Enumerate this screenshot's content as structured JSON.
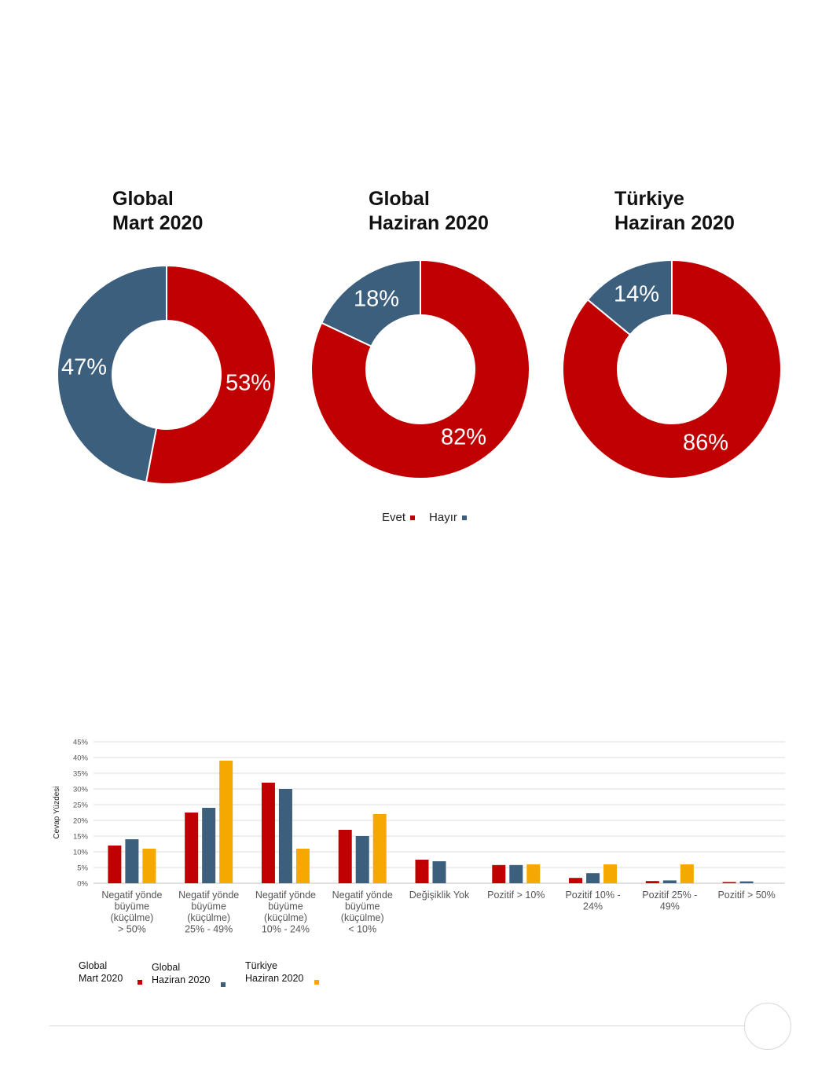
{
  "colors": {
    "evet": "#c00000",
    "hayir": "#3d5f7e",
    "global_mart": "#c00000",
    "global_haziran": "#3d5f7e",
    "turkiye_haziran": "#f5a800"
  },
  "donut_titles": [
    {
      "line1": "Global",
      "line2": "Mart 2020"
    },
    {
      "line1": "Global",
      "line2": "Haziran 2020"
    },
    {
      "line1": "Türkiye",
      "line2": "Haziran 2020"
    }
  ],
  "donut_legend": {
    "evet": "Evet",
    "hayir": "Hayır"
  },
  "bar_legend": [
    {
      "line1": "Global",
      "line2": "Mart 2020"
    },
    {
      "line1": "Global",
      "line2": "Haziran 2020"
    },
    {
      "line1": "Türkiye",
      "line2": "Haziran 2020"
    }
  ],
  "chart_data": [
    {
      "type": "pie",
      "title": "Global Mart 2020",
      "labels": [
        "Evet",
        "Hayır"
      ],
      "values": [
        53,
        47
      ],
      "value_labels": [
        "53%",
        "47%"
      ]
    },
    {
      "type": "pie",
      "title": "Global Haziran 2020",
      "labels": [
        "Evet",
        "Hayır"
      ],
      "values": [
        82,
        18
      ],
      "value_labels": [
        "82%",
        "18%"
      ]
    },
    {
      "type": "pie",
      "title": "Türkiye Haziran 2020",
      "labels": [
        "Evet",
        "Hayır"
      ],
      "values": [
        86,
        14
      ],
      "value_labels": [
        "86%",
        "14%"
      ]
    },
    {
      "type": "bar",
      "ylabel": "Cevap Yüzdesi",
      "ylim": [
        0,
        45
      ],
      "yticks": [
        "0%",
        "5%",
        "10%",
        "15%",
        "20%",
        "25%",
        "30%",
        "35%",
        "40%",
        "45%"
      ],
      "grid": true,
      "legend": "bottom-left",
      "categories": [
        [
          "Negatif yönde",
          "büyüme",
          "(küçülme)",
          "> 50%"
        ],
        [
          "Negatif yönde",
          "büyüme",
          "(küçülme)",
          "25% - 49%"
        ],
        [
          "Negatif yönde",
          "büyüme",
          "(küçülme)",
          "10% - 24%"
        ],
        [
          "Negatif yönde",
          "büyüme",
          "(küçülme)",
          "< 10%"
        ],
        [
          "Değişiklik Yok"
        ],
        [
          "Pozitif > 10%"
        ],
        [
          "Pozitif 10% -",
          "24%"
        ],
        [
          "Pozitif 25% -",
          "49%"
        ],
        [
          "Pozitif > 50%"
        ]
      ],
      "series": [
        {
          "name": "Global Mart 2020",
          "values": [
            12,
            22.5,
            32,
            17,
            7.5,
            5.8,
            1.7,
            0.7,
            0.4
          ]
        },
        {
          "name": "Global Haziran 2020",
          "values": [
            14,
            24,
            30,
            15,
            7,
            5.8,
            3.2,
            0.9,
            0.6
          ]
        },
        {
          "name": "Türkiye Haziran 2020",
          "values": [
            11,
            39,
            11,
            22,
            0,
            6,
            6,
            6,
            0
          ]
        }
      ]
    }
  ]
}
